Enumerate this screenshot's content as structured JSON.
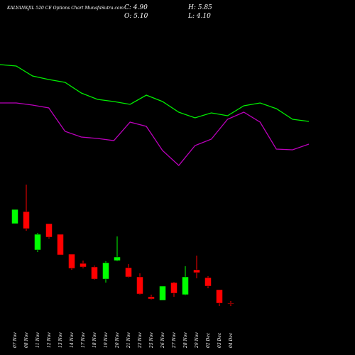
{
  "chart_data": {
    "type": "candlestick",
    "title": "KALYANKJIL 520 CE Options Chart MunafaSutra.com",
    "info": [
      "C: 4.90",
      "H: 5.85",
      "O: 5.10",
      "L: 4.10"
    ],
    "categories": [
      "07 Nov",
      "08 Nov",
      "11 Nov",
      "12 Nov",
      "13 Nov",
      "14 Nov",
      "17 Nov",
      "18 Nov",
      "19 Nov",
      "20 Nov",
      "21 Nov",
      "22 Nov",
      "25 Nov",
      "26 Nov",
      "27 Nov",
      "28 Nov",
      "29 Nov",
      "02 Dec",
      "03 Dec",
      "04 Dec"
    ],
    "open": [
      33.1,
      37.35,
      23.85,
      33.1,
      29.35,
      22.35,
      19.1,
      17.85,
      13.6,
      20.1,
      17.6,
      14.35,
      7.35,
      6.1,
      12.35,
      8.1,
      16.85,
      14.1,
      9.85,
      5.1
    ],
    "high": [
      38.1,
      46.85,
      29.85,
      33.1,
      29.35,
      22.35,
      20.1,
      18.35,
      19.85,
      28.6,
      18.85,
      15.6,
      8.1,
      11.1,
      12.6,
      18.1,
      21.85,
      14.6,
      9.85,
      5.85
    ],
    "low": [
      33.1,
      30.6,
      23.1,
      27.85,
      22.1,
      16.85,
      17.35,
      13.35,
      12.35,
      19.85,
      14.1,
      8.1,
      6.35,
      6.1,
      7.35,
      7.85,
      13.85,
      10.35,
      4.1,
      4.1
    ],
    "close": [
      38.1,
      31.35,
      29.35,
      28.35,
      22.1,
      17.35,
      17.85,
      13.6,
      19.35,
      21.35,
      14.35,
      8.35,
      6.6,
      11.1,
      8.6,
      14.35,
      15.85,
      11.1,
      5.1,
      4.9
    ],
    "up_color": "#00ff00",
    "down_color": "#ff0000",
    "ylim": [
      2,
      50
    ],
    "y2lim": [
      0,
      200
    ],
    "series": [
      {
        "color": "#00ee00",
        "axis": "y2",
        "values": [
          159,
          157,
          143,
          138,
          134,
          119,
          110,
          107,
          103,
          116,
          107,
          92,
          84,
          91,
          87,
          101,
          105,
          97,
          82,
          79
        ]
      },
      {
        "color": "#bb00bb",
        "axis": "y2",
        "values": [
          105,
          105,
          102,
          98,
          65,
          57,
          55,
          52,
          78,
          72,
          38,
          17,
          45,
          54,
          82,
          92,
          78,
          40,
          39,
          47
        ]
      }
    ]
  }
}
